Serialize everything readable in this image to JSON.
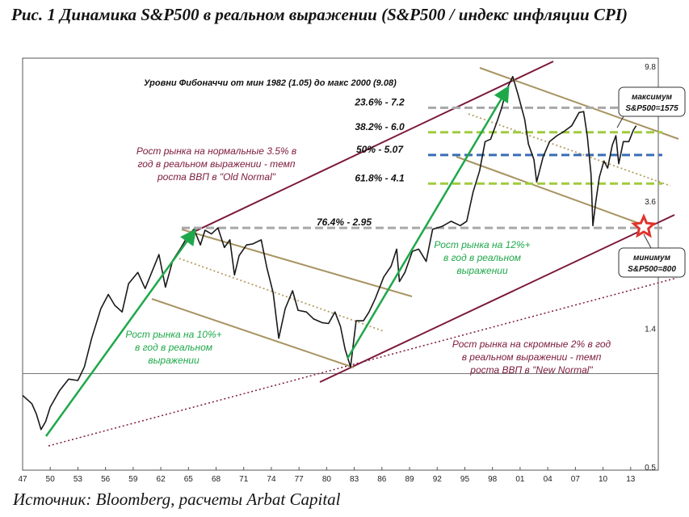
{
  "title": "Рис. 1 Динамика S&P500 в реальном выражении (S&P500 / индекс инфляции CPI)",
  "source": "Источник: Bloomberg, расчеты Arbat Capital",
  "colors": {
    "price": "#1a1a1a",
    "trend_green": "#1fa84a",
    "channel_tan": "#a89462",
    "channel_dotted_tan": "#b39d63",
    "long_channel": "#7c1a3a",
    "fib_gray": "#a8a8a8",
    "fib_green": "#9fcc3e",
    "fib_blue": "#3a6db5",
    "star_red": "#e0332b",
    "text_maroon": "#7c1a3a",
    "text_green": "#1fa84a"
  },
  "chart_data": {
    "type": "line",
    "x_scale": "year",
    "y_scale": "log",
    "xlim": [
      1947,
      2016
    ],
    "ylim": [
      0.5,
      9.8
    ],
    "x_ticks": [
      "47",
      "50",
      "53",
      "56",
      "59",
      "62",
      "65",
      "68",
      "71",
      "74",
      "77",
      "80",
      "83",
      "86",
      "89",
      "92",
      "95",
      "98",
      "01",
      "04",
      "07",
      "10",
      "13"
    ],
    "y_ticks": [
      {
        "value": 9.8,
        "label": "9.8"
      },
      {
        "value": 3.6,
        "label": "3.6"
      },
      {
        "value": 1.4,
        "label": "1.4"
      },
      {
        "value": 0.5,
        "label": "0.5"
      }
    ],
    "series": [
      {
        "name": "",
        "x": [
          1947.0,
          1948.0,
          1948.5,
          1949.0,
          1949.5,
          1950.0,
          1951.0,
          1952.0,
          1953.0,
          1953.7,
          1954.5,
          1955.5,
          1956.3,
          1957.0,
          1957.8,
          1958.5,
          1959.5,
          1960.3,
          1960.9,
          1961.8,
          1962.5,
          1963.3,
          1964.2,
          1965.0,
          1965.6,
          1966.3,
          1966.8,
          1967.5,
          1968.2,
          1968.9,
          1969.5,
          1970.0,
          1970.5,
          1971.3,
          1972.0,
          1972.9,
          1973.5,
          1974.2,
          1974.8,
          1975.5,
          1976.3,
          1976.9,
          1977.8,
          1978.6,
          1979.5,
          1980.2,
          1980.9,
          1981.5,
          1982.0,
          1982.6,
          1983.2,
          1984.0,
          1984.6,
          1985.3,
          1986.2,
          1987.0,
          1987.6,
          1987.9,
          1988.5,
          1989.3,
          1990.0,
          1990.8,
          1991.5,
          1992.5,
          1993.5,
          1994.5,
          1995.2,
          1995.9,
          1996.6,
          1997.2,
          1997.8,
          1998.5,
          1999.0,
          1999.5,
          2000.2,
          2000.8,
          2001.5,
          2001.9,
          2002.5,
          2002.8,
          2003.5,
          2004.2,
          2005.0,
          2005.8,
          2006.6,
          2007.4,
          2007.9,
          2008.3,
          2008.7,
          2008.9,
          2009.2,
          2009.6,
          2010.1,
          2010.5,
          2011.0,
          2011.4,
          2011.7,
          2012.2,
          2012.8,
          2013.3,
          2013.6
        ],
        "values": [
          0.85,
          0.8,
          0.74,
          0.66,
          0.7,
          0.78,
          0.88,
          0.96,
          0.95,
          1.05,
          1.3,
          1.62,
          1.8,
          1.66,
          1.58,
          1.95,
          2.12,
          1.88,
          2.08,
          2.42,
          1.9,
          2.32,
          2.55,
          2.8,
          2.92,
          2.6,
          2.9,
          2.82,
          2.95,
          2.55,
          2.7,
          2.08,
          2.4,
          2.6,
          2.62,
          2.7,
          2.2,
          1.82,
          1.3,
          1.62,
          1.85,
          1.6,
          1.58,
          1.5,
          1.46,
          1.45,
          1.58,
          1.42,
          1.2,
          1.05,
          1.48,
          1.48,
          1.58,
          1.75,
          2.05,
          2.22,
          2.52,
          1.98,
          2.12,
          2.48,
          2.52,
          2.3,
          2.92,
          2.98,
          3.1,
          3.0,
          3.1,
          3.85,
          4.5,
          5.6,
          5.7,
          6.5,
          7.2,
          8.2,
          9.08,
          7.9,
          6.6,
          5.5,
          4.9,
          4.15,
          5.0,
          5.6,
          5.85,
          6.05,
          6.3,
          6.95,
          7.0,
          5.8,
          4.4,
          3.0,
          3.55,
          4.3,
          4.85,
          4.6,
          5.45,
          5.85,
          4.75,
          5.6,
          5.6,
          6.1,
          6.3
        ]
      }
    ],
    "fib_label": "Уровни Фибоначчи от мин 1982 (1.05) до макс 2000 (9.08)",
    "fib_levels": [
      {
        "label": "23.6% - 7.2",
        "value": 7.2,
        "color": "#a8a8a8"
      },
      {
        "label": "38.2% - 6.0",
        "value": 6.0,
        "color": "#9fcc3e"
      },
      {
        "label": "50% - 5.07",
        "value": 5.07,
        "color": "#3a6db5"
      },
      {
        "label": "61.8% - 4.1",
        "value": 4.1,
        "color": "#9fcc3e"
      },
      {
        "label": "76.4% - 2.95",
        "value": 2.95,
        "color": "#a8a8a8"
      }
    ],
    "baseline": {
      "value": 1.0
    },
    "annotations": {
      "old_normal": [
        "Рост рынка на нормальные 3.5% в",
        "год в реальном выражении - темп",
        "роста ВВП в \"Old Normal\""
      ],
      "new_normal": [
        "Рост рынка на скромные 2% в год",
        "в реальном выражении - темп",
        "роста ВВП в \"New Normal\""
      ],
      "growth_10": [
        "Рост рынка на 10%+",
        "в год в реальном",
        "выражении"
      ],
      "growth_12": [
        "Рост рынка на 12%+",
        "в год в реальном",
        "выражении"
      ],
      "max_callout": [
        "максимум",
        "S&P500=1575"
      ],
      "min_callout": [
        "минимум",
        "S&P500=800"
      ]
    }
  }
}
